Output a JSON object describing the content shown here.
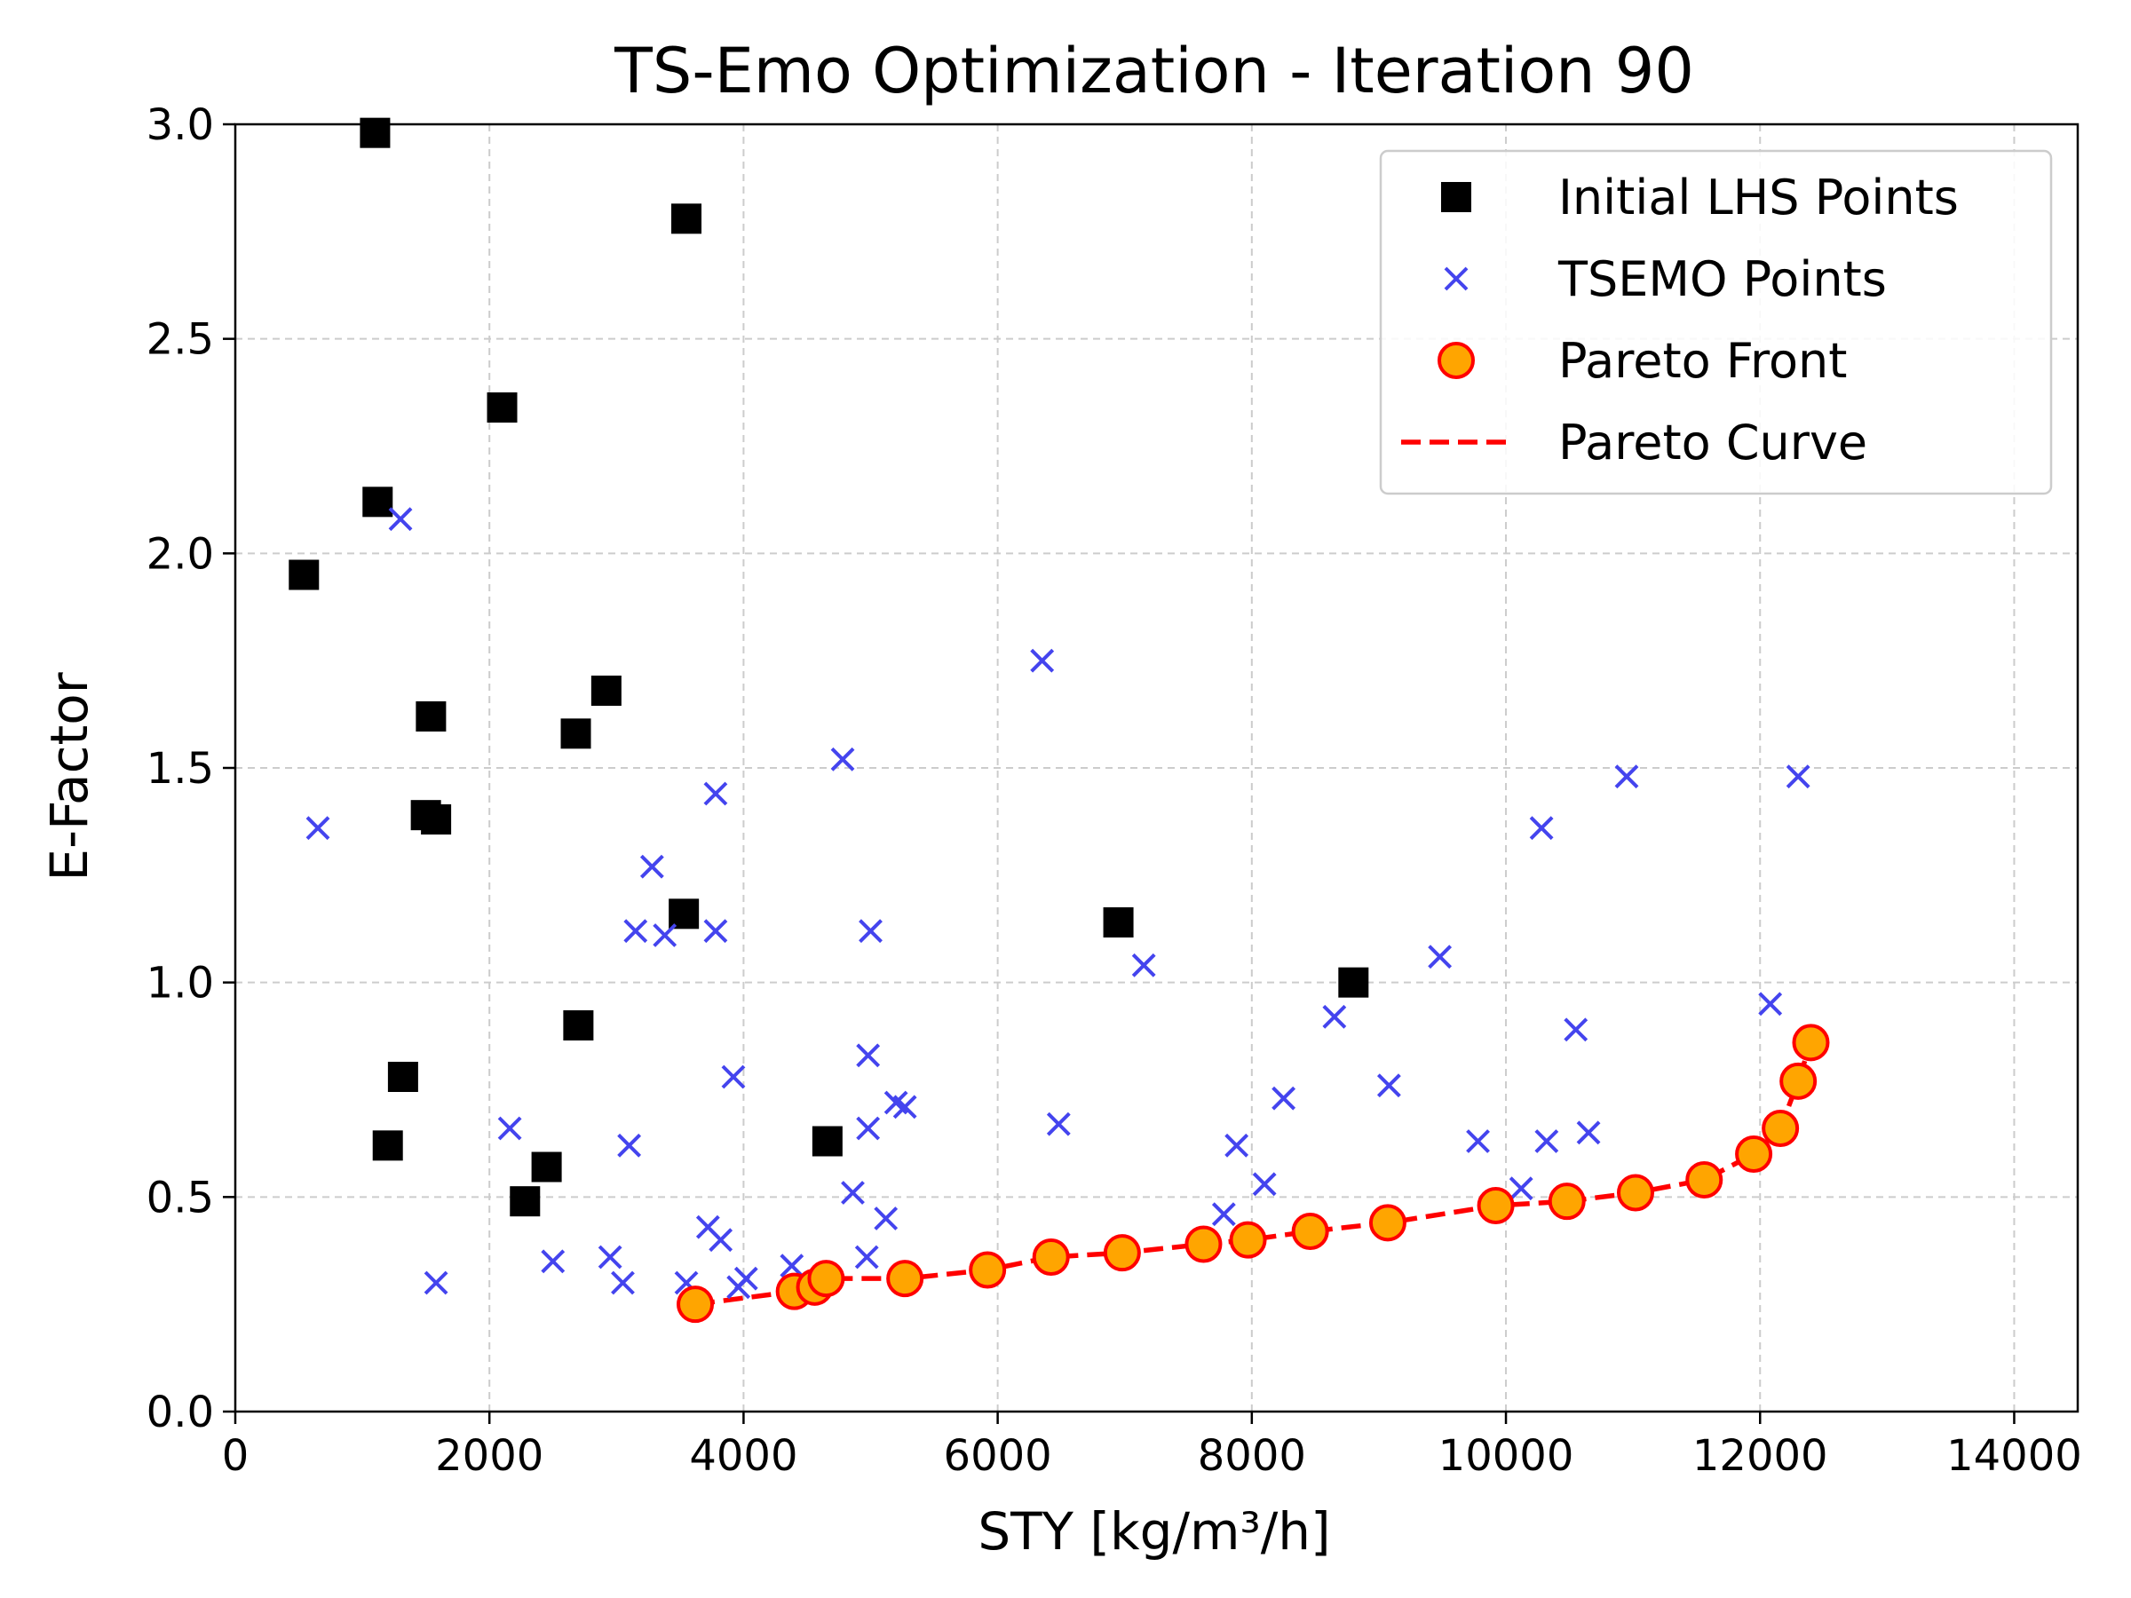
{
  "chart_data": {
    "type": "scatter",
    "title": "TS-Emo Optimization - Iteration 90",
    "xlabel": "STY [kg/m³/h]",
    "ylabel": "E-Factor",
    "xlim": [
      0,
      14500
    ],
    "ylim": [
      0,
      3.0
    ],
    "xticks": [
      0,
      2000,
      4000,
      6000,
      8000,
      10000,
      12000,
      14000
    ],
    "yticks": [
      0.0,
      0.5,
      1.0,
      1.5,
      2.0,
      2.5,
      3.0
    ],
    "xtick_labels": [
      "0",
      "2000",
      "4000",
      "6000",
      "8000",
      "10000",
      "12000",
      "14000"
    ],
    "ytick_labels": [
      "0.0",
      "0.5",
      "1.0",
      "1.5",
      "2.0",
      "2.5",
      "3.0"
    ],
    "grid": true,
    "legend_position": "top-right",
    "series": [
      {
        "name": "Initial LHS Points",
        "marker": "square",
        "color": "#000000",
        "points": [
          [
            1100,
            2.98
          ],
          [
            3550,
            2.78
          ],
          [
            2100,
            2.34
          ],
          [
            1120,
            2.12
          ],
          [
            540,
            1.95
          ],
          [
            2920,
            1.68
          ],
          [
            1540,
            1.62
          ],
          [
            2680,
            1.58
          ],
          [
            1500,
            1.39
          ],
          [
            1580,
            1.38
          ],
          [
            3530,
            1.16
          ],
          [
            6950,
            1.14
          ],
          [
            8800,
            1.0
          ],
          [
            2700,
            0.9
          ],
          [
            1320,
            0.78
          ],
          [
            1200,
            0.62
          ],
          [
            4660,
            0.63
          ],
          [
            2450,
            0.57
          ],
          [
            2280,
            0.49
          ]
        ]
      },
      {
        "name": "TSEMO Points",
        "marker": "x",
        "color": "#4444ee",
        "points": [
          [
            1300,
            2.08
          ],
          [
            650,
            1.36
          ],
          [
            6350,
            1.75
          ],
          [
            4780,
            1.52
          ],
          [
            3780,
            1.44
          ],
          [
            10950,
            1.48
          ],
          [
            12300,
            1.48
          ],
          [
            10280,
            1.36
          ],
          [
            3280,
            1.27
          ],
          [
            3150,
            1.12
          ],
          [
            3380,
            1.11
          ],
          [
            3780,
            1.12
          ],
          [
            5000,
            1.12
          ],
          [
            7150,
            1.04
          ],
          [
            9480,
            1.06
          ],
          [
            12080,
            0.95
          ],
          [
            8650,
            0.92
          ],
          [
            10550,
            0.89
          ],
          [
            4980,
            0.83
          ],
          [
            3920,
            0.78
          ],
          [
            9080,
            0.76
          ],
          [
            8250,
            0.73
          ],
          [
            5200,
            0.72
          ],
          [
            5270,
            0.71
          ],
          [
            6480,
            0.67
          ],
          [
            4980,
            0.66
          ],
          [
            2160,
            0.66
          ],
          [
            10650,
            0.65
          ],
          [
            9780,
            0.63
          ],
          [
            10320,
            0.63
          ],
          [
            3100,
            0.62
          ],
          [
            7880,
            0.62
          ],
          [
            8100,
            0.53
          ],
          [
            10120,
            0.52
          ],
          [
            4860,
            0.51
          ],
          [
            7780,
            0.46
          ],
          [
            5120,
            0.45
          ],
          [
            3720,
            0.43
          ],
          [
            3820,
            0.4
          ],
          [
            2500,
            0.35
          ],
          [
            2950,
            0.36
          ],
          [
            4970,
            0.36
          ],
          [
            4380,
            0.34
          ],
          [
            1580,
            0.3
          ],
          [
            3050,
            0.3
          ],
          [
            3550,
            0.3
          ],
          [
            4020,
            0.31
          ],
          [
            3960,
            0.29
          ]
        ]
      },
      {
        "name": "Pareto Front",
        "marker": "circle",
        "color": "#ffa500",
        "edge_color": "#ff0000",
        "points": [
          [
            3620,
            0.25
          ],
          [
            4400,
            0.28
          ],
          [
            4560,
            0.29
          ],
          [
            4650,
            0.31
          ],
          [
            5270,
            0.31
          ],
          [
            5920,
            0.33
          ],
          [
            6420,
            0.36
          ],
          [
            6980,
            0.37
          ],
          [
            7620,
            0.39
          ],
          [
            7970,
            0.4
          ],
          [
            8460,
            0.42
          ],
          [
            9070,
            0.44
          ],
          [
            9920,
            0.48
          ],
          [
            10480,
            0.49
          ],
          [
            11020,
            0.51
          ],
          [
            11560,
            0.54
          ],
          [
            11950,
            0.6
          ],
          [
            12160,
            0.66
          ],
          [
            12300,
            0.77
          ],
          [
            12400,
            0.86
          ]
        ]
      },
      {
        "name": "Pareto Curve",
        "marker": "dashed-line",
        "color": "#ff0000",
        "points": [
          [
            3620,
            0.25
          ],
          [
            4400,
            0.28
          ],
          [
            4560,
            0.29
          ],
          [
            4650,
            0.31
          ],
          [
            5270,
            0.31
          ],
          [
            5920,
            0.33
          ],
          [
            6420,
            0.36
          ],
          [
            6980,
            0.37
          ],
          [
            7620,
            0.39
          ],
          [
            7970,
            0.4
          ],
          [
            8460,
            0.42
          ],
          [
            9070,
            0.44
          ],
          [
            9920,
            0.48
          ],
          [
            10480,
            0.49
          ],
          [
            11020,
            0.51
          ],
          [
            11560,
            0.54
          ],
          [
            11950,
            0.6
          ],
          [
            12160,
            0.66
          ],
          [
            12300,
            0.77
          ],
          [
            12400,
            0.86
          ]
        ]
      }
    ]
  }
}
